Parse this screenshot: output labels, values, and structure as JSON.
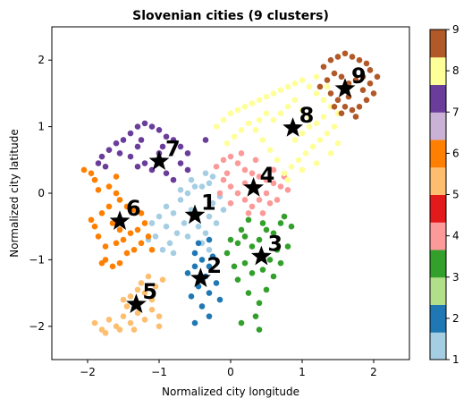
{
  "chart_data": {
    "type": "scatter",
    "title": "Slovenian cities (9 clusters)",
    "xlabel": "Normalized city longitude",
    "ylabel": "Normalized city latitude",
    "xlim": [
      -2.5,
      2.5
    ],
    "ylim": [
      -2.5,
      2.5
    ],
    "xticks": [
      -2,
      -1,
      0,
      1,
      2
    ],
    "yticks": [
      -2,
      -1,
      0,
      1,
      2
    ],
    "xtick_labels": [
      "−2",
      "−1",
      "0",
      "1",
      "2"
    ],
    "ytick_labels": [
      "−2",
      "−1",
      "0",
      "1",
      "2"
    ],
    "grid": false,
    "colorbar": {
      "range": [
        1,
        9
      ],
      "ticks": [
        1,
        2,
        3,
        4,
        5,
        6,
        7,
        8,
        9
      ],
      "tick_labels": [
        "1",
        "2",
        "3",
        "4",
        "5",
        "6",
        "7",
        "8",
        "9"
      ],
      "colors": [
        "#a6cee3",
        "#1f78b4",
        "#b2df8a",
        "#33a02c",
        "#fb9a99",
        "#e31a1c",
        "#fdbf6f",
        "#ff7f00",
        "#cab2d6",
        "#6a3d9a",
        "#ffff99",
        "#b15928"
      ]
    },
    "clusters": [
      {
        "label": "1",
        "color": "#a6cee3",
        "centroid": [
          -0.5,
          -0.33
        ],
        "points": [
          [
            -0.9,
            -0.5
          ],
          [
            -0.8,
            -0.3
          ],
          [
            -0.7,
            -0.1
          ],
          [
            -0.6,
            0.0
          ],
          [
            -0.5,
            0.1
          ],
          [
            -0.4,
            0.1
          ],
          [
            -0.3,
            0.15
          ],
          [
            -0.55,
            -0.25
          ],
          [
            -0.65,
            -0.45
          ],
          [
            -0.75,
            -0.6
          ],
          [
            -0.85,
            -0.75
          ],
          [
            -0.95,
            -0.85
          ],
          [
            -1.05,
            -0.65
          ],
          [
            -1.0,
            -0.35
          ],
          [
            -0.9,
            -0.2
          ],
          [
            -0.45,
            -0.5
          ],
          [
            -0.35,
            -0.6
          ],
          [
            -0.3,
            -0.35
          ],
          [
            -0.25,
            -0.15
          ],
          [
            -0.15,
            -0.05
          ],
          [
            -0.1,
            -0.25
          ],
          [
            -0.2,
            -0.45
          ],
          [
            -0.6,
            -0.65
          ],
          [
            -0.4,
            -0.75
          ],
          [
            -0.3,
            -0.85
          ],
          [
            -0.7,
            0.05
          ],
          [
            -0.55,
            0.2
          ],
          [
            -0.35,
            0.3
          ],
          [
            -0.25,
            0.25
          ],
          [
            -1.1,
            -0.45
          ],
          [
            -1.15,
            -0.7
          ],
          [
            -0.8,
            -0.9
          ]
        ]
      },
      {
        "label": "2",
        "color": "#1f78b4",
        "centroid": [
          -0.42,
          -1.28
        ],
        "points": [
          [
            -0.5,
            -0.9
          ],
          [
            -0.4,
            -1.0
          ],
          [
            -0.3,
            -1.1
          ],
          [
            -0.5,
            -1.1
          ],
          [
            -0.6,
            -1.2
          ],
          [
            -0.35,
            -1.25
          ],
          [
            -0.45,
            -1.4
          ],
          [
            -0.3,
            -1.5
          ],
          [
            -0.2,
            -1.35
          ],
          [
            -0.55,
            -1.55
          ],
          [
            -0.4,
            -1.7
          ],
          [
            -0.3,
            -1.85
          ],
          [
            -0.5,
            -1.95
          ],
          [
            -0.15,
            -1.6
          ],
          [
            -0.25,
            -0.95
          ],
          [
            -0.45,
            -0.75
          ],
          [
            -0.3,
            -0.7
          ]
        ]
      },
      {
        "label": "3",
        "color": "#33a02c",
        "centroid": [
          0.43,
          -0.95
        ],
        "points": [
          [
            0.0,
            -0.7
          ],
          [
            0.1,
            -0.75
          ],
          [
            0.2,
            -0.65
          ],
          [
            0.3,
            -0.8
          ],
          [
            0.4,
            -0.7
          ],
          [
            0.5,
            -0.55
          ],
          [
            0.6,
            -0.6
          ],
          [
            0.7,
            -0.45
          ],
          [
            0.75,
            -0.35
          ],
          [
            0.65,
            -0.85
          ],
          [
            0.55,
            -1.0
          ],
          [
            0.45,
            -1.15
          ],
          [
            0.3,
            -1.2
          ],
          [
            0.2,
            -1.05
          ],
          [
            0.1,
            -1.3
          ],
          [
            0.25,
            -1.5
          ],
          [
            0.4,
            -1.65
          ],
          [
            0.5,
            -1.45
          ],
          [
            0.6,
            -1.25
          ],
          [
            0.7,
            -1.05
          ],
          [
            0.8,
            -0.8
          ],
          [
            0.35,
            -1.85
          ],
          [
            0.15,
            -1.95
          ],
          [
            0.4,
            -2.05
          ],
          [
            0.05,
            -1.1
          ],
          [
            -0.05,
            -0.9
          ],
          [
            0.85,
            -0.5
          ],
          [
            0.25,
            -0.4
          ],
          [
            0.45,
            -0.45
          ],
          [
            0.15,
            -0.55
          ]
        ]
      },
      {
        "label": "4",
        "color": "#fb9a99",
        "centroid": [
          0.32,
          0.08
        ],
        "points": [
          [
            -0.2,
            0.4
          ],
          [
            -0.1,
            0.5
          ],
          [
            0.0,
            0.55
          ],
          [
            0.1,
            0.45
          ],
          [
            0.2,
            0.35
          ],
          [
            0.3,
            0.3
          ],
          [
            0.4,
            0.25
          ],
          [
            0.5,
            0.2
          ],
          [
            0.6,
            0.15
          ],
          [
            0.7,
            0.1
          ],
          [
            -0.1,
            0.2
          ],
          [
            0.0,
            0.1
          ],
          [
            0.1,
            0.0
          ],
          [
            0.2,
            -0.1
          ],
          [
            0.3,
            -0.2
          ],
          [
            0.4,
            -0.1
          ],
          [
            0.5,
            0.0
          ],
          [
            0.55,
            -0.15
          ],
          [
            0.45,
            -0.3
          ],
          [
            0.25,
            -0.3
          ],
          [
            0.0,
            -0.15
          ],
          [
            -0.15,
            0.0
          ],
          [
            0.6,
            0.35
          ],
          [
            0.75,
            0.25
          ],
          [
            0.35,
            0.5
          ],
          [
            0.15,
            0.6
          ],
          [
            -0.05,
            0.3
          ],
          [
            0.65,
            -0.1
          ],
          [
            0.8,
            0.05
          ],
          [
            0.2,
            0.15
          ]
        ]
      },
      {
        "label": "5",
        "color": "#fdbf6f",
        "centroid": [
          -1.32,
          -1.67
        ],
        "points": [
          [
            -1.9,
            -1.95
          ],
          [
            -1.8,
            -2.05
          ],
          [
            -1.7,
            -1.9
          ],
          [
            -1.6,
            -2.0
          ],
          [
            -1.5,
            -1.85
          ],
          [
            -1.4,
            -1.95
          ],
          [
            -1.3,
            -1.8
          ],
          [
            -1.2,
            -1.9
          ],
          [
            -1.1,
            -1.75
          ],
          [
            -1.0,
            -1.85
          ],
          [
            -1.1,
            -1.6
          ],
          [
            -1.2,
            -1.5
          ],
          [
            -1.3,
            -1.45
          ],
          [
            -1.4,
            -1.55
          ],
          [
            -1.5,
            -1.6
          ],
          [
            -1.05,
            -1.4
          ],
          [
            -0.95,
            -1.3
          ],
          [
            -1.15,
            -1.25
          ],
          [
            -1.25,
            -1.35
          ],
          [
            -1.75,
            -2.1
          ],
          [
            -1.55,
            -2.05
          ],
          [
            -1.35,
            -2.05
          ],
          [
            -1.0,
            -2.0
          ],
          [
            -1.45,
            -1.7
          ]
        ]
      },
      {
        "label": "6",
        "color": "#ff7f00",
        "centroid": [
          -1.55,
          -0.42
        ],
        "points": [
          [
            -2.05,
            0.35
          ],
          [
            -1.95,
            0.3
          ],
          [
            -1.9,
            0.2
          ],
          [
            -1.85,
            0.05
          ],
          [
            -1.7,
            0.1
          ],
          [
            -1.6,
            0.0
          ],
          [
            -1.55,
            -0.1
          ],
          [
            -1.45,
            -0.2
          ],
          [
            -1.35,
            -0.25
          ],
          [
            -1.25,
            -0.3
          ],
          [
            -1.2,
            -0.45
          ],
          [
            -1.3,
            -0.55
          ],
          [
            -1.4,
            -0.6
          ],
          [
            -1.5,
            -0.7
          ],
          [
            -1.6,
            -0.75
          ],
          [
            -1.75,
            -0.8
          ],
          [
            -1.85,
            -0.65
          ],
          [
            -1.9,
            -0.5
          ],
          [
            -1.95,
            -0.4
          ],
          [
            -1.8,
            -0.3
          ],
          [
            -1.7,
            -0.2
          ],
          [
            -1.65,
            -0.45
          ],
          [
            -1.55,
            -0.55
          ],
          [
            -1.75,
            -1.0
          ],
          [
            -1.65,
            -1.1
          ],
          [
            -1.55,
            -1.05
          ],
          [
            -1.45,
            -0.9
          ],
          [
            -1.35,
            -0.85
          ],
          [
            -1.25,
            -0.75
          ],
          [
            -1.15,
            -0.65
          ],
          [
            -1.1,
            -0.85
          ],
          [
            -1.8,
            -1.05
          ],
          [
            -1.6,
            0.25
          ]
        ]
      },
      {
        "label": "7",
        "color": "#6a3d9a",
        "centroid": [
          -1.0,
          0.48
        ],
        "points": [
          [
            -1.5,
            0.8
          ],
          [
            -1.4,
            0.9
          ],
          [
            -1.3,
            1.0
          ],
          [
            -1.2,
            1.05
          ],
          [
            -1.1,
            1.0
          ],
          [
            -1.0,
            0.95
          ],
          [
            -0.9,
            0.85
          ],
          [
            -0.8,
            0.8
          ],
          [
            -0.7,
            0.7
          ],
          [
            -0.6,
            0.6
          ],
          [
            -1.6,
            0.75
          ],
          [
            -1.7,
            0.65
          ],
          [
            -1.8,
            0.55
          ],
          [
            -1.85,
            0.45
          ],
          [
            -1.75,
            0.4
          ],
          [
            -1.2,
            0.45
          ],
          [
            -1.1,
            0.35
          ],
          [
            -0.9,
            0.3
          ],
          [
            -0.8,
            0.2
          ],
          [
            -1.0,
            0.6
          ],
          [
            -1.3,
            0.7
          ],
          [
            -1.4,
            0.55
          ],
          [
            -0.7,
            0.45
          ],
          [
            -1.55,
            0.6
          ],
          [
            -1.25,
            0.8
          ],
          [
            -0.95,
            0.7
          ],
          [
            -0.6,
            0.35
          ],
          [
            -0.35,
            0.8
          ],
          [
            -1.3,
            0.4
          ]
        ]
      },
      {
        "label": "8",
        "color": "#ffff99",
        "centroid": [
          0.87,
          0.98
        ],
        "points": [
          [
            -0.2,
            1.0
          ],
          [
            -0.1,
            1.1
          ],
          [
            0.0,
            1.2
          ],
          [
            0.1,
            1.25
          ],
          [
            0.2,
            1.3
          ],
          [
            0.3,
            1.35
          ],
          [
            0.4,
            1.4
          ],
          [
            0.5,
            1.45
          ],
          [
            0.6,
            1.5
          ],
          [
            0.7,
            1.55
          ],
          [
            0.8,
            1.6
          ],
          [
            0.9,
            1.65
          ],
          [
            1.0,
            1.7
          ],
          [
            1.1,
            1.6
          ],
          [
            1.2,
            1.5
          ],
          [
            1.3,
            1.4
          ],
          [
            1.4,
            1.3
          ],
          [
            1.5,
            1.2
          ],
          [
            1.45,
            1.0
          ],
          [
            1.35,
            0.9
          ],
          [
            1.25,
            0.8
          ],
          [
            1.15,
            0.7
          ],
          [
            1.05,
            0.6
          ],
          [
            0.95,
            0.5
          ],
          [
            0.85,
            0.4
          ],
          [
            0.75,
            0.3
          ],
          [
            0.65,
            0.5
          ],
          [
            0.55,
            0.65
          ],
          [
            0.45,
            0.8
          ],
          [
            0.35,
            0.95
          ],
          [
            0.25,
            1.05
          ],
          [
            0.15,
            0.95
          ],
          [
            0.05,
            0.85
          ],
          [
            -0.05,
            0.75
          ],
          [
            0.6,
            1.1
          ],
          [
            0.7,
            1.2
          ],
          [
            0.8,
            1.3
          ],
          [
            0.9,
            1.4
          ],
          [
            1.0,
            1.25
          ],
          [
            1.1,
            1.15
          ],
          [
            1.2,
            1.05
          ],
          [
            1.3,
            1.15
          ],
          [
            0.9,
            0.8
          ],
          [
            1.0,
            0.9
          ],
          [
            1.1,
            1.0
          ],
          [
            0.5,
            1.2
          ],
          [
            0.4,
            1.1
          ],
          [
            1.35,
            1.6
          ],
          [
            1.2,
            1.75
          ],
          [
            1.5,
            0.75
          ],
          [
            1.4,
            0.6
          ],
          [
            1.2,
            0.45
          ],
          [
            1.0,
            0.35
          ],
          [
            0.8,
            0.2
          ]
        ]
      },
      {
        "label": "9",
        "color": "#b15928",
        "centroid": [
          1.6,
          1.57
        ],
        "points": [
          [
            1.3,
            1.9
          ],
          [
            1.4,
            2.0
          ],
          [
            1.5,
            2.05
          ],
          [
            1.6,
            2.1
          ],
          [
            1.7,
            2.05
          ],
          [
            1.8,
            2.0
          ],
          [
            1.9,
            1.95
          ],
          [
            1.95,
            1.85
          ],
          [
            1.85,
            1.75
          ],
          [
            1.75,
            1.7
          ],
          [
            1.65,
            1.65
          ],
          [
            1.55,
            1.75
          ],
          [
            1.45,
            1.8
          ],
          [
            1.35,
            1.7
          ],
          [
            1.25,
            1.6
          ],
          [
            1.4,
            1.5
          ],
          [
            1.5,
            1.4
          ],
          [
            1.6,
            1.3
          ],
          [
            1.7,
            1.25
          ],
          [
            1.8,
            1.3
          ],
          [
            1.9,
            1.4
          ],
          [
            2.0,
            1.5
          ],
          [
            1.85,
            1.55
          ],
          [
            1.95,
            1.65
          ],
          [
            1.65,
            1.45
          ],
          [
            1.55,
            1.2
          ],
          [
            1.75,
            1.15
          ],
          [
            1.45,
            1.3
          ],
          [
            2.05,
            1.75
          ]
        ]
      }
    ]
  }
}
